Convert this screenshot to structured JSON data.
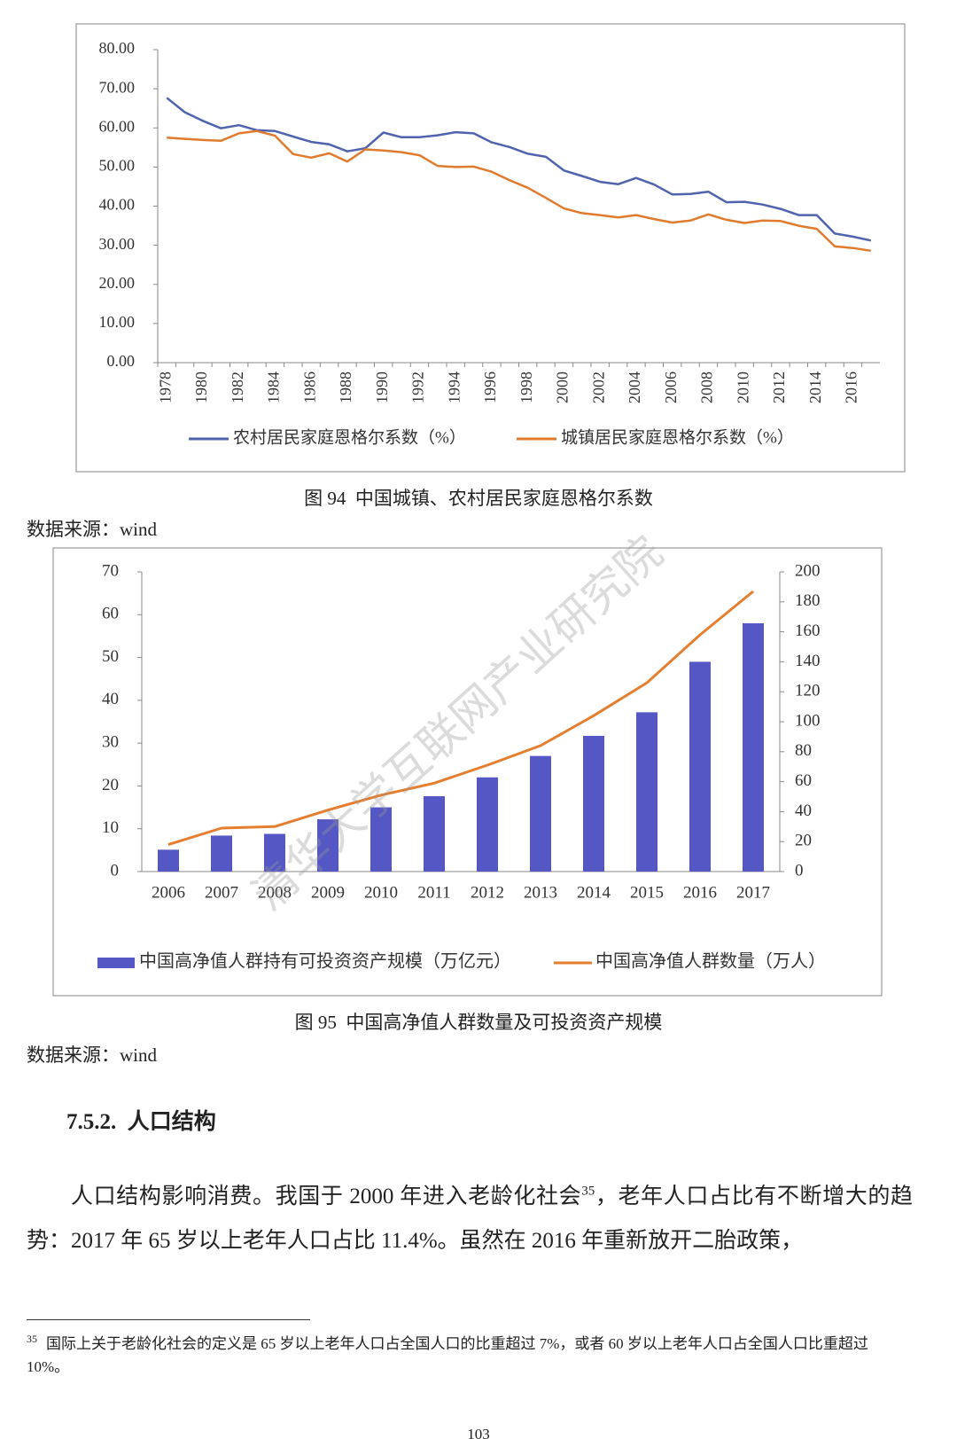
{
  "chart_data": [
    {
      "type": "line",
      "categories": [
        "1978",
        null,
        "1980",
        null,
        "1982",
        null,
        "1984",
        null,
        "1986",
        null,
        "1988",
        null,
        "1990",
        null,
        "1992",
        null,
        "1994",
        null,
        "1996",
        null,
        "1998",
        null,
        "2000",
        null,
        "2002",
        null,
        "2004",
        null,
        "2006",
        null,
        "2008",
        null,
        "2010",
        null,
        "2012",
        null,
        "2014",
        null,
        "2016",
        null
      ],
      "ylim": [
        0,
        80
      ],
      "yticks": [
        {
          "value": 0,
          "label": "0.00"
        },
        {
          "value": 10,
          "label": "10.00"
        },
        {
          "value": 20,
          "label": "20.00"
        },
        {
          "value": 30,
          "label": "30.00"
        },
        {
          "value": 40,
          "label": "40.00"
        },
        {
          "value": 50,
          "label": "50.00"
        },
        {
          "value": 60,
          "label": "60.00"
        },
        {
          "value": 70,
          "label": "70.00"
        },
        {
          "value": 80,
          "label": "80.00"
        }
      ],
      "legend": "bottom",
      "series": [
        {
          "name": "农村居民家庭恩格尔系数（%）",
          "color": "#4f63ae",
          "values": [
            67.7,
            64.0,
            61.8,
            59.9,
            60.7,
            59.4,
            59.2,
            57.8,
            56.4,
            55.8,
            54.0,
            54.8,
            58.8,
            57.6,
            57.6,
            58.1,
            58.9,
            58.6,
            56.3,
            55.1,
            53.4,
            52.6,
            49.1,
            47.7,
            46.2,
            45.6,
            47.2,
            45.5,
            43.0,
            43.1,
            43.7,
            41.0,
            41.1,
            40.4,
            39.3,
            37.7,
            37.7,
            33.0,
            32.2,
            31.2
          ]
        },
        {
          "name": "城镇居民家庭恩格尔系数（%）",
          "color": "#e07b2e",
          "values": [
            57.5,
            57.2,
            56.9,
            56.7,
            58.6,
            59.2,
            58.0,
            53.3,
            52.4,
            53.5,
            51.4,
            54.5,
            54.2,
            53.8,
            53.0,
            50.3,
            50.0,
            50.1,
            48.8,
            46.6,
            44.7,
            42.1,
            39.4,
            38.2,
            37.7,
            37.1,
            37.7,
            36.7,
            35.8,
            36.3,
            37.9,
            36.5,
            35.7,
            36.3,
            36.2,
            35.0,
            34.2,
            29.7,
            29.3,
            28.6
          ]
        }
      ]
    },
    {
      "type": "bar",
      "categories": [
        "2006",
        "2007",
        "2008",
        "2009",
        "2010",
        "2011",
        "2012",
        "2013",
        "2014",
        "2015",
        "2016",
        "2017"
      ],
      "ylim": [
        0,
        70
      ],
      "yticks": [
        0,
        10,
        20,
        30,
        40,
        50,
        60,
        70
      ],
      "y2lim": [
        0,
        200
      ],
      "y2ticks": [
        0,
        20,
        40,
        60,
        80,
        100,
        120,
        140,
        160,
        180,
        200
      ],
      "legend": "bottom",
      "series": [
        {
          "name": "中国高净值人群持有可投资资产规模（万亿元）",
          "color": "#5558c4",
          "values": [
            5.1,
            8.4,
            8.8,
            12.2,
            15.0,
            17.6,
            22.0,
            27.0,
            31.7,
            37.2,
            49.0,
            58.0
          ]
        },
        {
          "name": "中国高净值人群数量（万人）",
          "type": "line",
          "axis": "y2",
          "color": "#e57f2f",
          "values": [
            18,
            29,
            30,
            41,
            51,
            59,
            71,
            84,
            104,
            126,
            158,
            187
          ]
        }
      ]
    }
  ],
  "figures": [
    {
      "caption": "图 94  中国城镇、农村居民家庭恩格尔系数",
      "source": "数据来源：wind"
    },
    {
      "caption": "图 95  中国高净值人群数量及可投资资产规模",
      "source": "数据来源：wind"
    }
  ],
  "watermark": "清华大学互联网产业研究院",
  "section": {
    "heading": "7.5.2.  人口结构",
    "paragraph": {
      "before": "人口结构影响消费。我国于 2000 年进入老龄化社会",
      "footnote_ref": "35",
      "after": "，老年人口占比有不断增大的趋势：2017 年 65 岁以上老年人口占比 11.4%。虽然在 2016 年重新放开二胎政策，"
    }
  },
  "footnote": {
    "marker": "35",
    "text": "国际上关于老龄化社会的定义是 65 岁以上老年人口占全国人口的比重超过 7%，或者 60 岁以上老年人口占全国人口比重超过 10%。"
  },
  "page_number": "103"
}
